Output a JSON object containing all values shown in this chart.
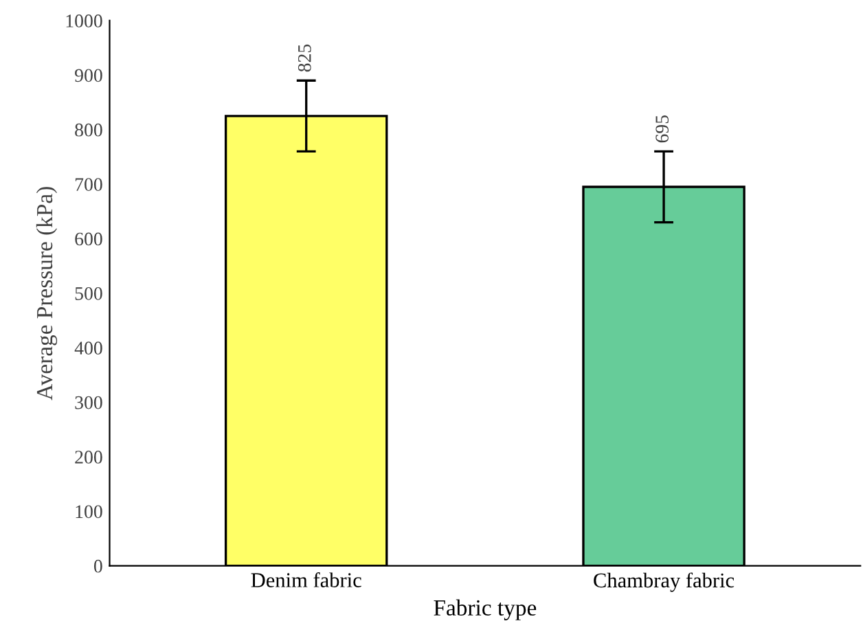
{
  "chart_data": {
    "type": "bar",
    "xlabel": "Fabric type",
    "ylabel": "Average Pressure (kPa)",
    "categories": [
      "Denim fabric",
      "Chambray fabric"
    ],
    "values": [
      825,
      695
    ],
    "colors": [
      "#ffff66",
      "#66cc99"
    ],
    "errors": [
      65,
      65
    ],
    "data_labels": true,
    "ylim": [
      0,
      1000
    ],
    "yticks": [
      0,
      100,
      200,
      300,
      400,
      500,
      600,
      700,
      800,
      900,
      1000
    ],
    "grid": false,
    "legend": false
  }
}
